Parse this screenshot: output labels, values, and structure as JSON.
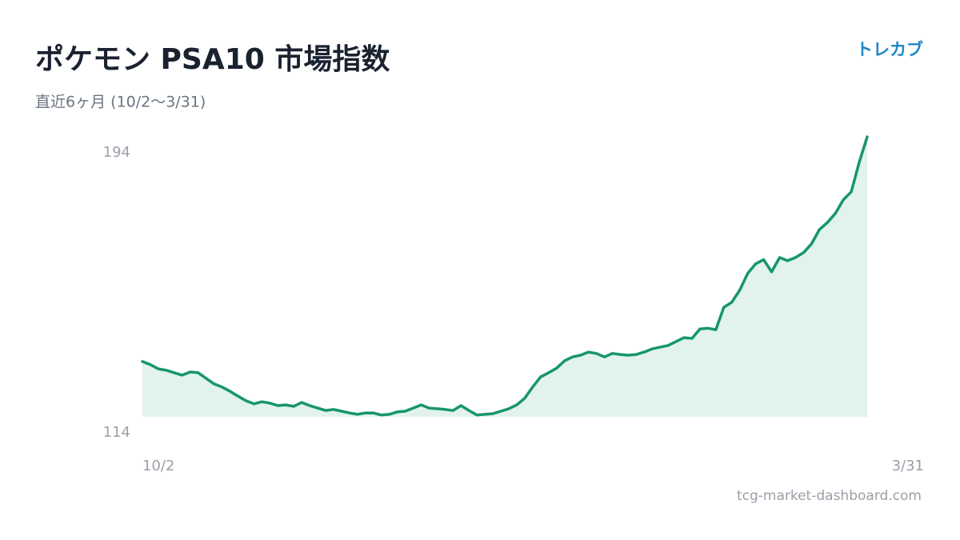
{
  "header": {
    "brand": "トレカブ"
  },
  "footer": {
    "site": "tcg-market-dashboard.com"
  },
  "chart_data": {
    "type": "area",
    "title": "ポケモン PSA10 市場指数",
    "subtitle": "直近6ヶ月 (10/2〜3/31)",
    "color": "#17966a",
    "fill": "#e1f3ec",
    "ylim": [
      114,
      194
    ],
    "yticks": [
      114,
      194
    ],
    "grid": false,
    "categories": [
      "10/2",
      null,
      null,
      null,
      null,
      null,
      null,
      null,
      null,
      null,
      null,
      null,
      null,
      null,
      null,
      null,
      null,
      null,
      null,
      null,
      null,
      null,
      null,
      null,
      null,
      null,
      null,
      null,
      null,
      null,
      null,
      null,
      null,
      null,
      null,
      null,
      null,
      null,
      null,
      null,
      null,
      null,
      null,
      null,
      null,
      null,
      null,
      null,
      null,
      null,
      null,
      null,
      null,
      null,
      null,
      null,
      null,
      null,
      null,
      null,
      null,
      null,
      null,
      null,
      null,
      null,
      null,
      null,
      null,
      null,
      null,
      null,
      null,
      null,
      null,
      null,
      null,
      null,
      null,
      null,
      null,
      null,
      null,
      null,
      null,
      null,
      null,
      null,
      null,
      null,
      null,
      "3/31"
    ],
    "values": [
      129.8,
      128.9,
      127.7,
      127.3,
      126.6,
      125.9,
      126.8,
      126.6,
      125.0,
      123.4,
      122.5,
      121.3,
      119.9,
      118.6,
      117.7,
      118.3,
      117.9,
      117.2,
      117.4,
      117.0,
      118.1,
      117.2,
      116.5,
      115.8,
      116.1,
      115.6,
      115.1,
      114.7,
      115.1,
      115.1,
      114.5,
      114.7,
      115.4,
      115.6,
      116.5,
      117.4,
      116.5,
      116.3,
      116.1,
      115.8,
      117.2,
      115.8,
      114.5,
      114.7,
      114.9,
      115.6,
      116.3,
      117.4,
      119.3,
      122.5,
      125.4,
      126.6,
      127.9,
      130.0,
      131.1,
      131.6,
      132.5,
      132.1,
      131.1,
      132.1,
      131.8,
      131.6,
      131.8,
      132.5,
      133.4,
      133.9,
      134.4,
      135.5,
      136.6,
      136.4,
      139.1,
      139.3,
      138.9,
      145.3,
      146.7,
      150.2,
      155.0,
      157.7,
      158.9,
      155.4,
      159.5,
      158.6,
      159.5,
      160.9,
      163.4,
      167.5,
      169.5,
      172.1,
      176.0,
      178.3,
      186.7,
      194.0
    ]
  }
}
